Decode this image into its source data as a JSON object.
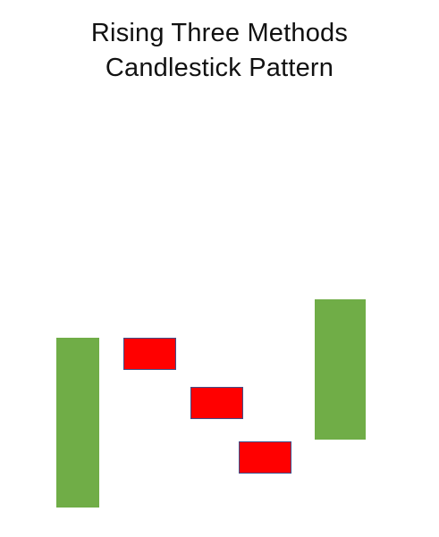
{
  "title": {
    "line1": "Rising Three Methods",
    "line2": "Candlestick Pattern"
  },
  "colors": {
    "bullish": "#70ad47",
    "bearish": "#ff0000",
    "bearish_outline": "#3f4f8a",
    "background": "#ffffff",
    "text": "#111111"
  },
  "candles": [
    {
      "kind": "bullish"
    },
    {
      "kind": "bearish"
    },
    {
      "kind": "bearish"
    },
    {
      "kind": "bearish"
    },
    {
      "kind": "bullish"
    }
  ]
}
